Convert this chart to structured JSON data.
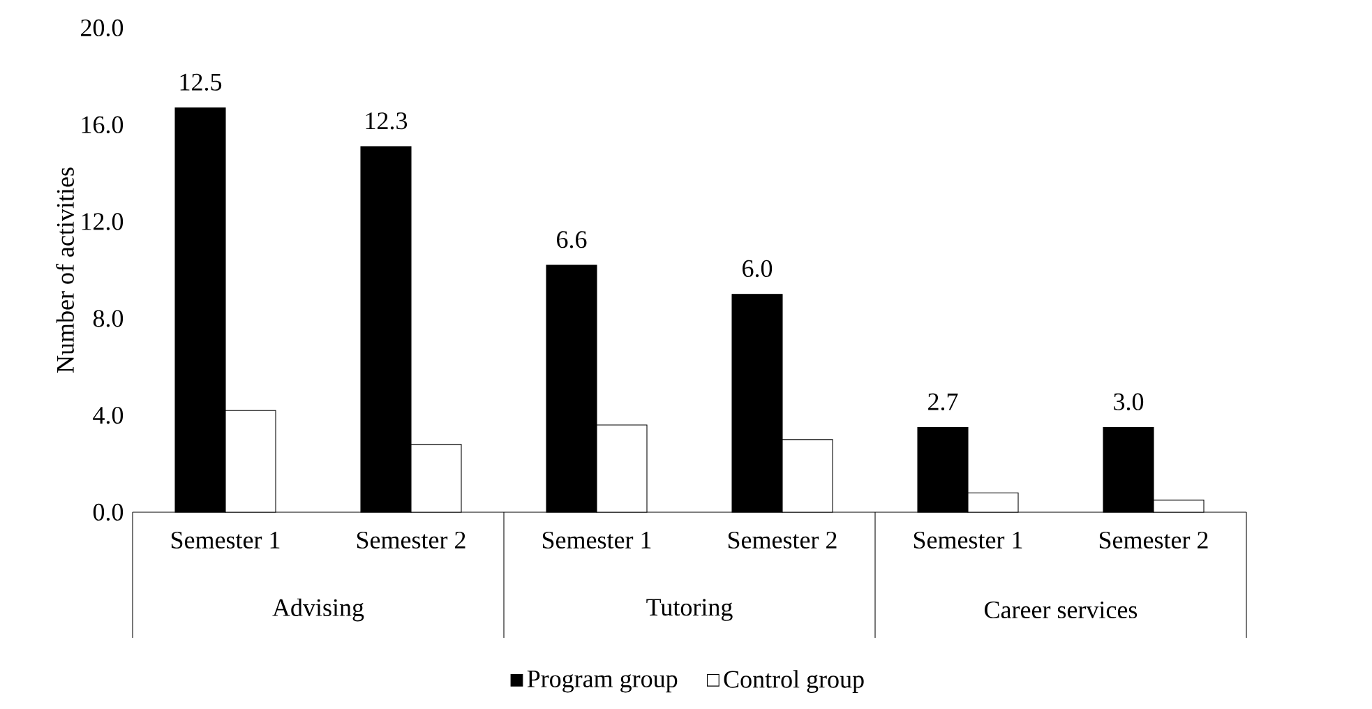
{
  "chart_data": {
    "type": "bar",
    "ylabel": "Number of activities",
    "categories": [
      "Semester 1",
      "Semester 2",
      "Semester 1",
      "Semester 2",
      "Semester 1",
      "Semester 2"
    ],
    "series": [
      {
        "name": "Program group",
        "color": "#000000",
        "values": [
          16.7,
          15.1,
          10.2,
          9.0,
          3.5,
          3.5
        ]
      },
      {
        "name": "Control group",
        "color": "#ffffff",
        "values": [
          4.2,
          2.8,
          3.6,
          3.0,
          0.8,
          0.5
        ]
      }
    ],
    "annotations": [
      "12.5",
      "12.3",
      "6.6",
      "6.0",
      "2.7",
      "3.0",
      "Advising",
      "Tutoring",
      "Career services"
    ],
    "ylim": [
      0,
      20
    ],
    "yticks": [
      {
        "value": 0,
        "label": "0.0"
      },
      {
        "value": 4,
        "label": "4.0"
      },
      {
        "value": 8,
        "label": "8.0"
      },
      {
        "value": 12,
        "label": "12.0"
      },
      {
        "value": 16,
        "label": "16.0"
      },
      {
        "value": 20,
        "label": "20.0"
      }
    ],
    "legend": "bottom"
  }
}
